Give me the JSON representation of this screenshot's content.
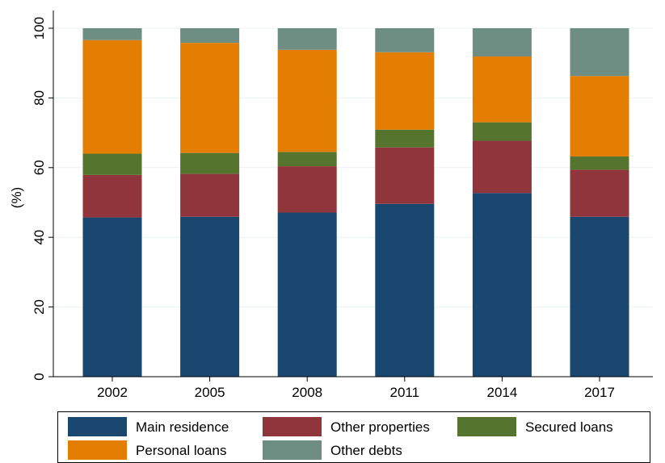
{
  "chart_data": {
    "type": "bar",
    "stacked": true,
    "categories": [
      "2002",
      "2005",
      "2008",
      "2011",
      "2014",
      "2017"
    ],
    "series": [
      {
        "name": "Main residence",
        "color": "#1a476f",
        "values": [
          45.7,
          45.9,
          47.1,
          49.6,
          52.7,
          45.9
        ]
      },
      {
        "name": "Other properties",
        "color": "#90353b",
        "values": [
          12.2,
          12.3,
          13.3,
          16.2,
          15.0,
          13.5
        ]
      },
      {
        "name": "Secured loans",
        "color": "#55752f",
        "values": [
          6.1,
          6.0,
          4.1,
          5.1,
          5.3,
          3.8
        ]
      },
      {
        "name": "Personal loans",
        "color": "#e37e00",
        "values": [
          32.6,
          31.6,
          29.3,
          22.2,
          18.9,
          23.1
        ]
      },
      {
        "name": "Other debts",
        "color": "#6e8e84",
        "values": [
          3.4,
          4.2,
          6.2,
          6.9,
          8.1,
          13.7
        ]
      }
    ],
    "ylabel": "(%)",
    "xlabel": "",
    "ylim": [
      0,
      100
    ],
    "yticks": [
      0,
      20,
      40,
      60,
      80,
      100
    ],
    "grid": true,
    "legend_position": "bottom"
  }
}
